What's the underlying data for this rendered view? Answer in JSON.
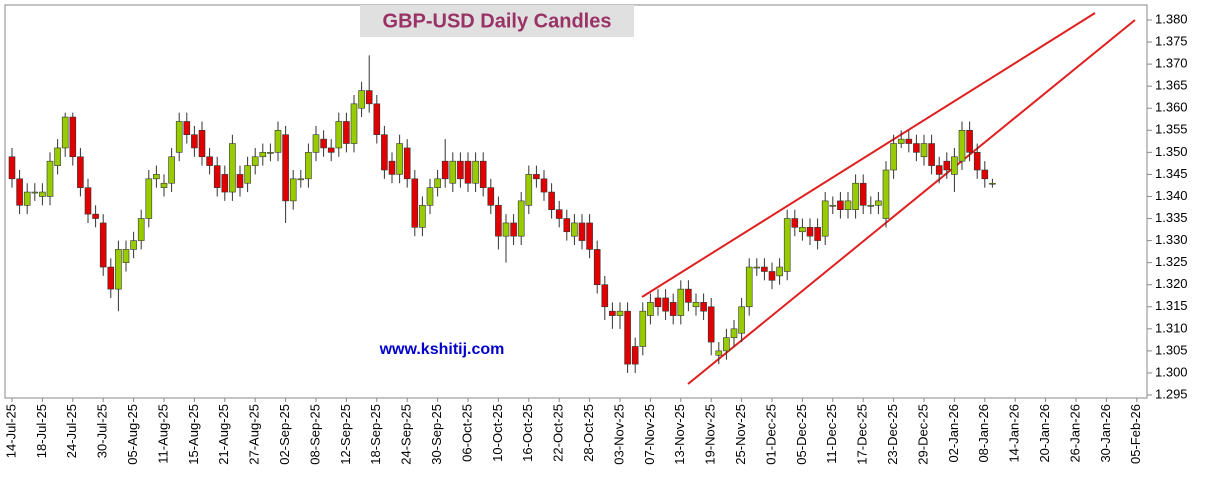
{
  "chart_data": {
    "type": "candlestick",
    "title": "GBP-USD Daily Candles",
    "annotation": "www.kshitij.com",
    "up_color": "#99cc00",
    "down_color": "#e00000",
    "categories": [
      "14-Jul-25",
      null,
      null,
      null,
      "18-Jul-25",
      null,
      null,
      null,
      "24-Jul-25",
      null,
      null,
      null,
      "30-Jul-25",
      null,
      null,
      null,
      "05-Aug-25",
      null,
      null,
      null,
      "11-Aug-25",
      null,
      null,
      null,
      "15-Aug-25",
      null,
      null,
      null,
      "21-Aug-25",
      null,
      null,
      null,
      "27-Aug-25",
      null,
      null,
      null,
      "02-Sep-25",
      null,
      null,
      null,
      "08-Sep-25",
      null,
      null,
      null,
      "12-Sep-25",
      null,
      null,
      null,
      "18-Sep-25",
      null,
      null,
      null,
      "24-Sep-25",
      null,
      null,
      null,
      "30-Sep-25",
      null,
      null,
      null,
      "06-Oct-25",
      null,
      null,
      null,
      "10-Oct-25",
      null,
      null,
      null,
      "16-Oct-25",
      null,
      null,
      null,
      "22-Oct-25",
      null,
      null,
      null,
      "28-Oct-25",
      null,
      null,
      null,
      "03-Nov-25",
      null,
      null,
      null,
      "07-Nov-25",
      null,
      null,
      null,
      "13-Nov-25",
      null,
      null,
      null,
      "19-Nov-25",
      null,
      null,
      null,
      "25-Nov-25",
      null,
      null,
      null,
      "01-Dec-25",
      null,
      null,
      null,
      "05-Dec-25",
      null,
      null,
      null,
      "11-Dec-25",
      null,
      null,
      null,
      "17-Dec-25",
      null,
      null,
      null,
      "23-Dec-25",
      null,
      null,
      null,
      "29-Dec-25",
      null,
      null,
      null,
      "02-Jan-26",
      null,
      null,
      null,
      "08-Jan-26",
      null,
      null,
      null,
      "14-Jan-26",
      null,
      null,
      null,
      "20-Jan-26",
      null,
      null,
      null,
      "26-Jan-26",
      null,
      null,
      null,
      "30-Jan-26",
      null,
      null,
      null,
      "05-Feb-26"
    ],
    "open": [
      1.349,
      1.344,
      1.338,
      1.341,
      1.34,
      1.34,
      1.347,
      1.351,
      1.358,
      1.349,
      1.342,
      1.336,
      1.334,
      1.324,
      1.319,
      1.325,
      1.328,
      1.33,
      1.335,
      1.344,
      1.342,
      1.343,
      1.35,
      1.357,
      1.354,
      1.355,
      1.349,
      1.347,
      1.345,
      1.341,
      1.345,
      1.343,
      1.347,
      1.349,
      1.35,
      1.35,
      1.354,
      1.339,
      1.344,
      1.344,
      1.35,
      1.353,
      1.351,
      1.351,
      1.357,
      1.352,
      1.36,
      1.364,
      1.361,
      1.354,
      1.348,
      1.345,
      1.351,
      1.344,
      1.333,
      1.338,
      1.342,
      1.348,
      1.343,
      1.348,
      1.348,
      1.343,
      1.348,
      1.342,
      1.338,
      1.331,
      1.334,
      1.331,
      1.338,
      1.345,
      1.344,
      1.341,
      1.337,
      1.335,
      1.331,
      1.334,
      1.334,
      1.328,
      1.32,
      1.314,
      1.313,
      1.314,
      1.306,
      1.306,
      1.313,
      1.317,
      1.317,
      1.316,
      1.313,
      1.319,
      1.315,
      1.316,
      1.315,
      1.304,
      1.305,
      1.308,
      1.309,
      1.315,
      1.324,
      1.324,
      1.323,
      1.322,
      1.323,
      1.335,
      1.332,
      1.333,
      1.333,
      1.331,
      1.338,
      1.339,
      1.337,
      1.337,
      1.343,
      1.338,
      1.338,
      1.335,
      1.346,
      1.352,
      1.353,
      1.352,
      1.349,
      1.352,
      1.347,
      1.348,
      1.345,
      1.348,
      1.355,
      1.35,
      1.346,
      1.343,
      null,
      null,
      null,
      null,
      null,
      null,
      null,
      null,
      null,
      null,
      null,
      null,
      null,
      null,
      null,
      null,
      null,
      null,
      null
    ],
    "high": [
      1.351,
      1.346,
      1.343,
      1.343,
      1.343,
      1.35,
      1.353,
      1.359,
      1.359,
      1.351,
      1.344,
      1.338,
      1.336,
      1.326,
      1.33,
      1.33,
      1.332,
      1.337,
      1.346,
      1.347,
      1.345,
      1.351,
      1.359,
      1.359,
      1.356,
      1.357,
      1.351,
      1.349,
      1.347,
      1.354,
      1.347,
      1.349,
      1.351,
      1.352,
      1.352,
      1.357,
      1.356,
      1.346,
      1.346,
      1.352,
      1.356,
      1.355,
      1.353,
      1.359,
      1.359,
      1.363,
      1.366,
      1.372,
      1.363,
      1.356,
      1.35,
      1.354,
      1.353,
      1.346,
      1.34,
      1.344,
      1.346,
      1.353,
      1.35,
      1.35,
      1.35,
      1.35,
      1.35,
      1.344,
      1.34,
      1.336,
      1.336,
      1.341,
      1.347,
      1.347,
      1.346,
      1.343,
      1.339,
      1.337,
      1.336,
      1.336,
      1.336,
      1.33,
      1.322,
      1.316,
      1.316,
      1.316,
      1.308,
      1.316,
      1.318,
      1.319,
      1.319,
      1.318,
      1.321,
      1.321,
      1.318,
      1.318,
      1.317,
      1.307,
      1.31,
      1.312,
      1.317,
      1.326,
      1.326,
      1.326,
      1.325,
      1.326,
      1.337,
      1.337,
      1.335,
      1.335,
      1.335,
      1.341,
      1.34,
      1.341,
      1.341,
      1.345,
      1.345,
      1.34,
      1.341,
      1.348,
      1.354,
      1.355,
      1.355,
      1.354,
      1.354,
      1.354,
      1.349,
      1.35,
      1.351,
      1.357,
      1.357,
      1.352,
      1.348,
      1.344,
      null,
      null,
      null,
      null,
      null,
      null,
      null,
      null,
      null,
      null,
      null,
      null,
      null,
      null,
      null,
      null,
      null,
      null,
      null
    ],
    "low": [
      1.342,
      1.336,
      1.336,
      1.339,
      1.338,
      1.338,
      1.345,
      1.349,
      1.347,
      1.34,
      1.334,
      1.333,
      1.322,
      1.317,
      1.314,
      1.323,
      1.326,
      1.328,
      1.333,
      1.342,
      1.34,
      1.341,
      1.348,
      1.352,
      1.349,
      1.347,
      1.345,
      1.34,
      1.339,
      1.339,
      1.34,
      1.341,
      1.345,
      1.347,
      1.348,
      1.348,
      1.334,
      1.337,
      1.342,
      1.342,
      1.348,
      1.349,
      1.348,
      1.349,
      1.35,
      1.35,
      1.358,
      1.359,
      1.352,
      1.344,
      1.343,
      1.343,
      1.342,
      1.331,
      1.331,
      1.336,
      1.34,
      1.342,
      1.341,
      1.342,
      1.341,
      1.341,
      1.34,
      1.336,
      1.328,
      1.325,
      1.329,
      1.329,
      1.336,
      1.342,
      1.339,
      1.335,
      1.333,
      1.33,
      1.329,
      1.328,
      1.326,
      1.318,
      1.312,
      1.31,
      1.31,
      1.3,
      1.3,
      1.304,
      1.311,
      1.313,
      1.312,
      1.311,
      1.311,
      1.314,
      1.313,
      1.312,
      1.304,
      1.302,
      1.303,
      1.306,
      1.307,
      1.313,
      1.322,
      1.321,
      1.319,
      1.32,
      1.321,
      1.331,
      1.33,
      1.329,
      1.328,
      1.329,
      1.336,
      1.335,
      1.335,
      1.335,
      1.336,
      1.336,
      1.336,
      1.333,
      1.344,
      1.351,
      1.35,
      1.348,
      1.347,
      1.345,
      1.343,
      1.344,
      1.341,
      1.346,
      1.348,
      1.344,
      1.342,
      1.342,
      null,
      null,
      null,
      null,
      null,
      null,
      null,
      null,
      null,
      null,
      null,
      null,
      null,
      null,
      null,
      null,
      null,
      null,
      null
    ],
    "close": [
      1.344,
      1.338,
      1.341,
      1.341,
      1.341,
      1.348,
      1.351,
      1.358,
      1.349,
      1.342,
      1.336,
      1.335,
      1.324,
      1.319,
      1.328,
      1.328,
      1.33,
      1.335,
      1.344,
      1.345,
      1.343,
      1.349,
      1.357,
      1.354,
      1.351,
      1.349,
      1.347,
      1.342,
      1.341,
      1.352,
      1.342,
      1.347,
      1.349,
      1.35,
      1.35,
      1.355,
      1.339,
      1.344,
      1.344,
      1.35,
      1.354,
      1.351,
      1.35,
      1.357,
      1.352,
      1.361,
      1.364,
      1.361,
      1.354,
      1.346,
      1.345,
      1.352,
      1.344,
      1.333,
      1.338,
      1.342,
      1.344,
      1.344,
      1.348,
      1.344,
      1.343,
      1.348,
      1.342,
      1.338,
      1.331,
      1.334,
      1.331,
      1.339,
      1.345,
      1.344,
      1.341,
      1.337,
      1.335,
      1.332,
      1.334,
      1.33,
      1.328,
      1.32,
      1.315,
      1.313,
      1.314,
      1.302,
      1.302,
      1.314,
      1.316,
      1.315,
      1.314,
      1.313,
      1.319,
      1.316,
      1.316,
      1.314,
      1.307,
      1.305,
      1.308,
      1.31,
      1.315,
      1.324,
      1.324,
      1.323,
      1.321,
      1.324,
      1.335,
      1.333,
      1.333,
      1.331,
      1.33,
      1.339,
      1.338,
      1.337,
      1.339,
      1.343,
      1.338,
      1.338,
      1.339,
      1.346,
      1.352,
      1.353,
      1.352,
      1.35,
      1.352,
      1.347,
      1.345,
      1.346,
      1.349,
      1.355,
      1.35,
      1.346,
      1.344,
      1.343,
      null,
      null,
      null,
      null,
      null,
      null,
      null,
      null,
      null,
      null,
      null,
      null,
      null,
      null,
      null,
      null,
      null,
      null,
      null
    ],
    "ylim": [
      1.295,
      1.38
    ],
    "yticks": [
      1.295,
      {
        "value": 1.3,
        "label": "1.300"
      },
      1.305,
      {
        "value": 1.31,
        "label": "1.310"
      },
      1.315,
      {
        "value": 1.32,
        "label": "1.320"
      },
      1.325,
      {
        "value": 1.33,
        "label": "1.330"
      },
      1.335,
      {
        "value": 1.34,
        "label": "1.340"
      },
      1.345,
      {
        "value": 1.35,
        "label": "1.350"
      },
      1.355,
      {
        "value": 1.36,
        "label": "1.360"
      },
      1.365,
      {
        "value": 1.37,
        "label": "1.370"
      },
      1.375,
      {
        "value": 1.38,
        "label": "1.380"
      }
    ],
    "grid": false
  }
}
